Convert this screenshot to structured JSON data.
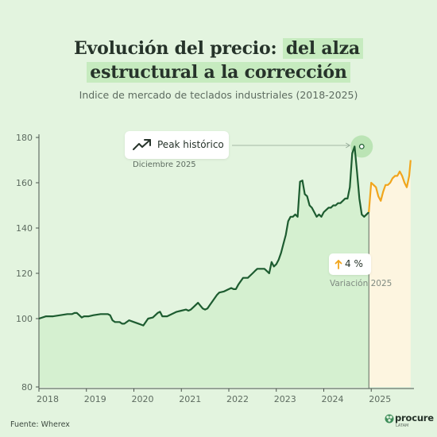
{
  "header": {
    "title_part1": "Evolución del precio:",
    "title_hl1": "del alza",
    "title_hl2": "estructural a la corrección",
    "subtitle": "Indice de mercado de teclados industriales (2018-2025)"
  },
  "annotations": {
    "peak_label": "Peak histórico",
    "peak_date": "Diciembre 2025",
    "peak_icon": "trending-up-icon",
    "variation_value": "4 %",
    "variation_label": "Variación 2025",
    "variation_icon": "arrow-up-icon"
  },
  "footer": {
    "source": "Fuente: Wherex",
    "brand": "procure",
    "brand_sub": "LATAM"
  },
  "colors": {
    "background": "#e3f4df",
    "historic_line": "#1d5c30",
    "historic_fill": "#d5f0d0",
    "forecast_line": "#f1a51c",
    "forecast_fill": "#fdf5e0",
    "peak_halo": "#b6e2b0",
    "accent_arrow": "#f1a51c"
  },
  "chart_data": {
    "type": "area",
    "title": "",
    "xlabel": "",
    "ylabel": "",
    "xlim": [
      2018,
      2025.9
    ],
    "ylim": [
      80,
      180
    ],
    "yticks": [
      80,
      100,
      120,
      140,
      160,
      180
    ],
    "xticks": [
      2018,
      2019,
      2020,
      2021,
      2022,
      2023,
      2024,
      2025
    ],
    "grid": false,
    "series": [
      {
        "key": "historic",
        "x": [
          2018.0,
          2018.15,
          2018.3,
          2018.45,
          2018.6,
          2018.65,
          2018.7,
          2018.75,
          2018.8,
          2018.85,
          2018.9,
          2018.95,
          2019.0,
          2019.05,
          2019.15,
          2019.3,
          2019.45,
          2019.5,
          2019.55,
          2019.6,
          2019.7,
          2019.75,
          2019.8,
          2019.9,
          2020.0,
          2020.1,
          2020.2,
          2020.3,
          2020.4,
          2020.5,
          2020.55,
          2020.6,
          2020.7,
          2020.8,
          2020.9,
          2021.0,
          2021.1,
          2021.15,
          2021.2,
          2021.25,
          2021.3,
          2021.35,
          2021.45,
          2021.5,
          2021.55,
          2021.6,
          2021.7,
          2021.75,
          2021.8,
          2021.9,
          2022.0,
          2022.05,
          2022.1,
          2022.15,
          2022.2,
          2022.3,
          2022.4,
          2022.5,
          2022.55,
          2022.6,
          2022.65,
          2022.7,
          2022.75,
          2022.8,
          2022.85,
          2022.9,
          2022.95,
          2023.0,
          2023.05,
          2023.1,
          2023.15,
          2023.2,
          2023.25,
          2023.3,
          2023.35,
          2023.4,
          2023.45,
          2023.5,
          2023.55,
          2023.6,
          2023.65,
          2023.7,
          2023.75,
          2023.8,
          2023.85,
          2023.9,
          2023.95,
          2024.0,
          2024.05,
          2024.1,
          2024.15,
          2024.2,
          2024.25,
          2024.3,
          2024.35,
          2024.4,
          2024.45,
          2024.5,
          2024.55,
          2024.6,
          2024.65,
          2024.7,
          2024.75,
          2024.8,
          2024.85,
          2024.9,
          2024.95
        ],
        "y": [
          100,
          101,
          101,
          101.5,
          102,
          102,
          102,
          102.5,
          102.5,
          101.5,
          100.5,
          101,
          101,
          101,
          101.5,
          102,
          102,
          101.5,
          99.5,
          99,
          99,
          98.5,
          98.5,
          99.5,
          99,
          98.5,
          98,
          100,
          100.5,
          102.5,
          103,
          101,
          101,
          102,
          103,
          103.5,
          104,
          103.5,
          104,
          105,
          106,
          107,
          104.5,
          104,
          104.5,
          106,
          109,
          110.5,
          111.5,
          112,
          113,
          113.5,
          113,
          113,
          115,
          118,
          118,
          120,
          121,
          122,
          122,
          122,
          122,
          121,
          120,
          125,
          123,
          124,
          126,
          129,
          133,
          137,
          143,
          145,
          145,
          146,
          145,
          160.5,
          161,
          155,
          154,
          150,
          149,
          147,
          145,
          146,
          145,
          147,
          148,
          149,
          149,
          150,
          150,
          151,
          151,
          152,
          153,
          153,
          158,
          173,
          176,
          165,
          153,
          146,
          145,
          146,
          147
        ]
      },
      {
        "key": "forecast",
        "x": [
          2024.95,
          2025.0,
          2025.05,
          2025.1,
          2025.15,
          2025.2,
          2025.25,
          2025.3,
          2025.35,
          2025.4,
          2025.45,
          2025.5,
          2025.55,
          2025.6,
          2025.65,
          2025.7,
          2025.75,
          2025.8,
          2025.83
        ],
        "y": [
          147,
          160,
          159,
          158,
          154,
          152,
          156,
          159,
          159,
          160,
          162,
          163,
          163,
          165,
          163,
          160,
          158,
          163,
          170
        ]
      }
    ],
    "annotations": [
      {
        "label": "Peak histórico",
        "sublabel": "Diciembre 2025",
        "x": 2024.8,
        "y": 176
      },
      {
        "label": "4 %",
        "sublabel": "Variación 2025",
        "x": 2025.0
      }
    ]
  }
}
